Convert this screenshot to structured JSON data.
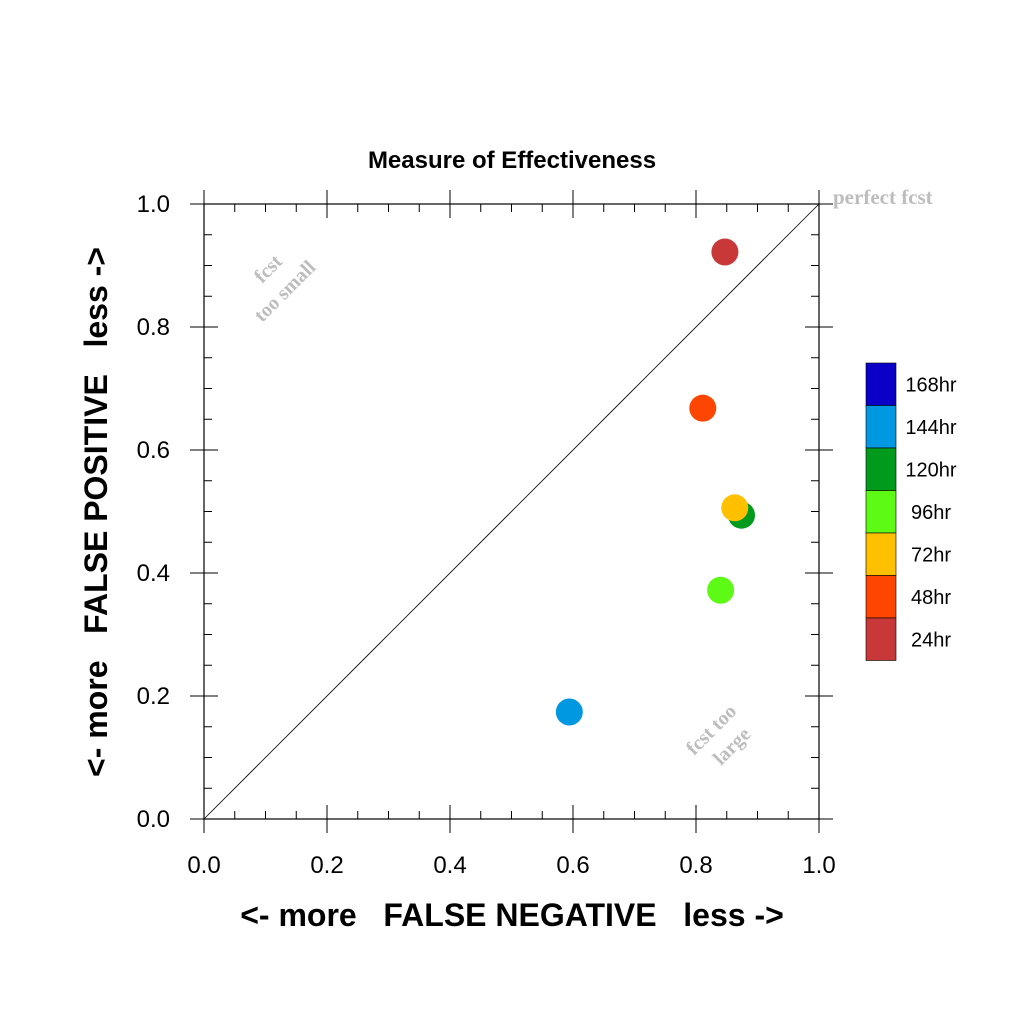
{
  "chart_data": {
    "type": "scatter",
    "title": "Measure of Effectiveness",
    "xlabel": "<- more   FALSE NEGATIVE   less ->",
    "ylabel": "<- more   FALSE POSITIVE   less ->",
    "xlim": [
      0.0,
      1.0
    ],
    "ylim": [
      0.0,
      1.0
    ],
    "x_ticks": [
      "0.0",
      "0.2",
      "0.4",
      "0.6",
      "0.8",
      "1.0"
    ],
    "y_ticks": [
      "0.0",
      "0.2",
      "0.4",
      "0.6",
      "0.8",
      "1.0"
    ],
    "grid": false,
    "diagonal_line": true,
    "annotations": {
      "perfect": "perfect fcst",
      "too_small_1": "fcst",
      "too_small_2": "too small",
      "too_large_1": "fcst too",
      "too_large_2": "large"
    },
    "legend_position": "right",
    "series": [
      {
        "name": "168hr",
        "color": "#0a00c8",
        "points": []
      },
      {
        "name": "144hr",
        "color": "#0098e0",
        "points": [
          {
            "x": 0.594,
            "y": 0.174
          }
        ]
      },
      {
        "name": "120hr",
        "color": "#009a1c",
        "points": [
          {
            "x": 0.874,
            "y": 0.494
          }
        ]
      },
      {
        "name": "96hr",
        "color": "#5cfa14",
        "points": [
          {
            "x": 0.84,
            "y": 0.372
          }
        ]
      },
      {
        "name": "72hr",
        "color": "#ffc000",
        "points": [
          {
            "x": 0.863,
            "y": 0.506
          }
        ]
      },
      {
        "name": "48hr",
        "color": "#ff4600",
        "points": [
          {
            "x": 0.811,
            "y": 0.668
          }
        ]
      },
      {
        "name": "24hr",
        "color": "#c83838",
        "points": [
          {
            "x": 0.847,
            "y": 0.922
          }
        ]
      }
    ]
  }
}
